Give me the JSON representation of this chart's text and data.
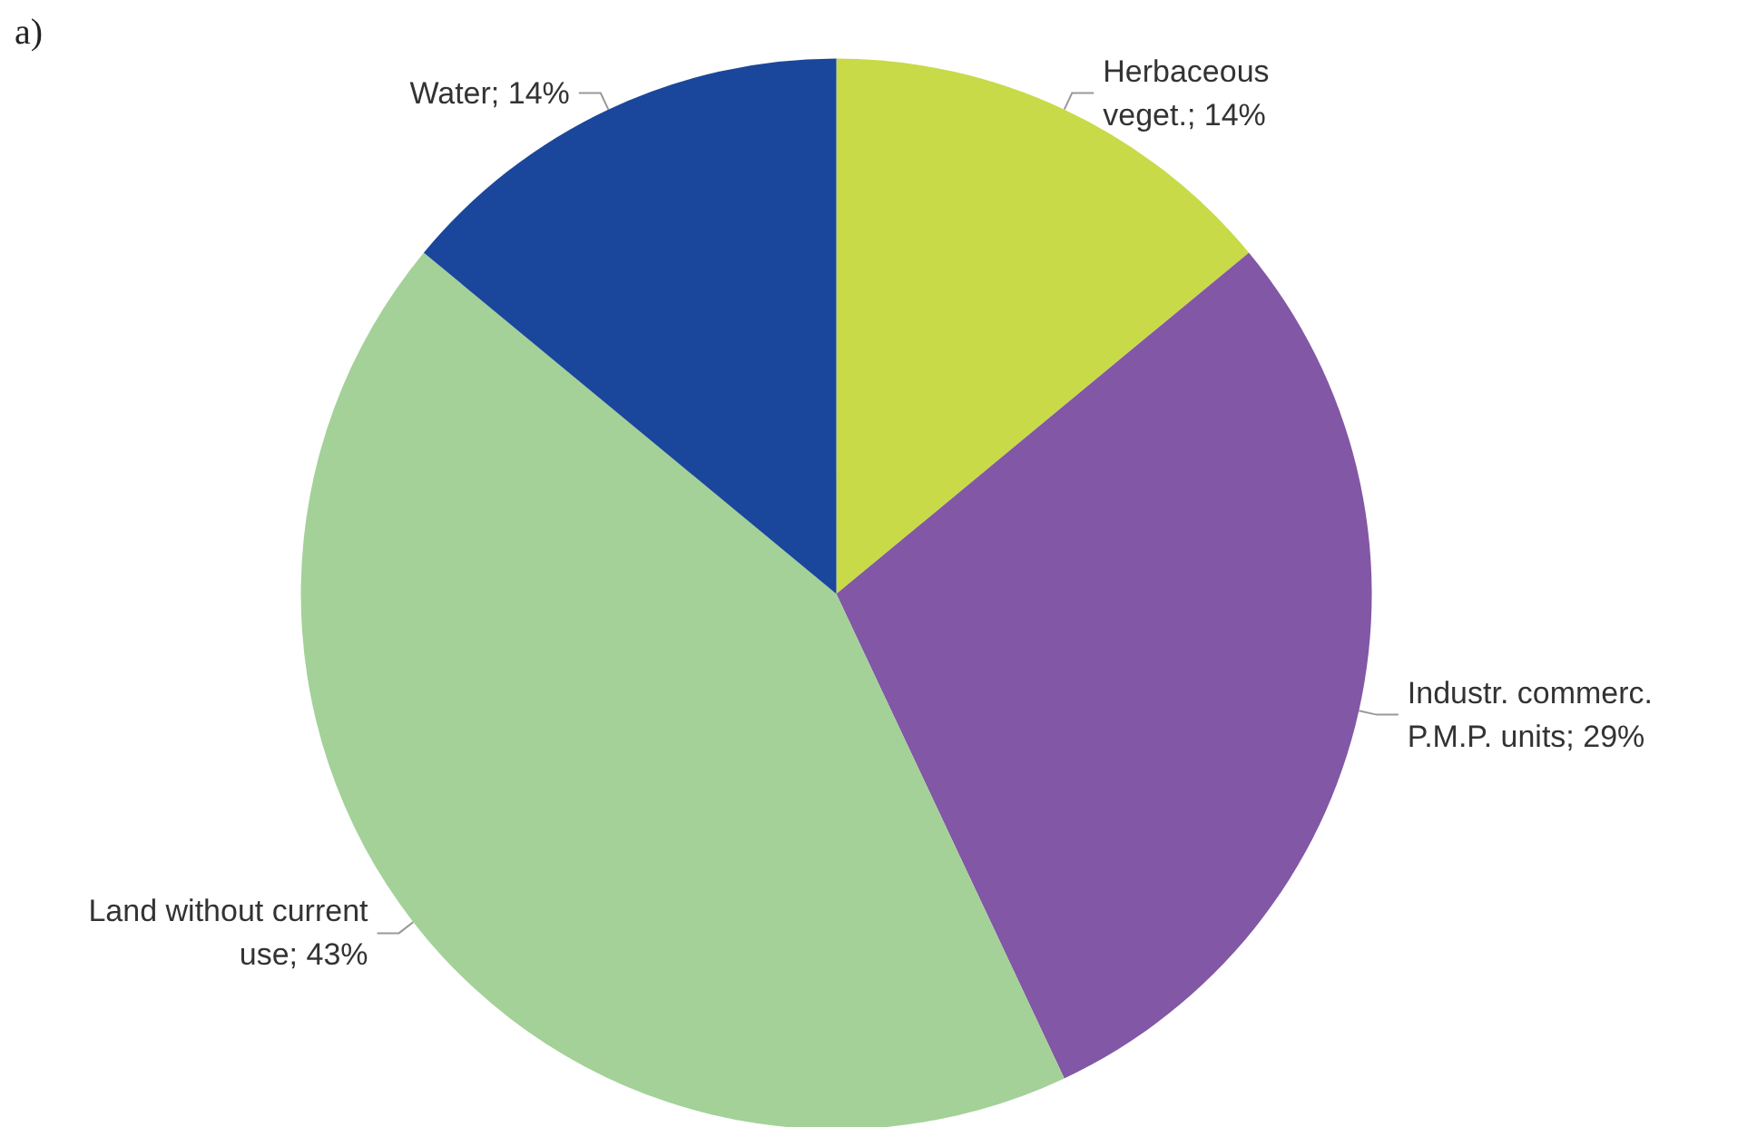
{
  "chart_data": {
    "type": "pie",
    "annotations": [
      "a)"
    ],
    "categories": [
      "Herbaceous veget.",
      "Industr. commerc. P.M.P. units",
      "Land without current use",
      "Water"
    ],
    "values": [
      14,
      29,
      43,
      14
    ],
    "value_labels": [
      "14%",
      "29%",
      "43%",
      "14%"
    ],
    "colors": [
      "#c8da48",
      "#8257a5",
      "#a3d198",
      "#1a479b"
    ],
    "legend": false
  }
}
